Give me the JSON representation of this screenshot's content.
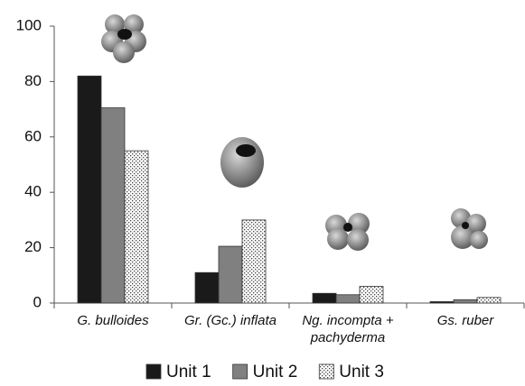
{
  "chart_data": {
    "type": "bar",
    "categories": [
      "G. bulloides",
      "Gr. (Gc.) inflata",
      "Ng. incompta + pachyderma",
      "Gs. ruber"
    ],
    "series": [
      {
        "name": "Unit 1",
        "color": "#1a1a1a",
        "values": [
          82,
          11,
          3.5,
          0.5
        ]
      },
      {
        "name": "Unit 2",
        "color": "#808080",
        "values": [
          70.5,
          20.5,
          3,
          1.2
        ]
      },
      {
        "name": "Unit 3",
        "color": "#ffffff",
        "pattern": "dots",
        "values": [
          55,
          30,
          6,
          2
        ]
      }
    ],
    "ylim": [
      0,
      100
    ],
    "yticks": [
      0,
      20,
      40,
      60,
      80,
      100
    ],
    "grid": false,
    "legend": "bottom"
  }
}
